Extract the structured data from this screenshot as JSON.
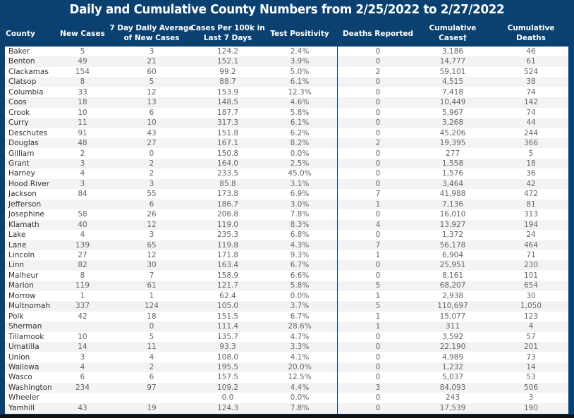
{
  "title": "Daily and Cumulative County Numbers from 2/25/2022 to 2/27/2022",
  "colors": {
    "background": "#0b4170",
    "row_alt": "#f3f3f3"
  },
  "columns": [
    "County",
    "New Cases",
    "7 Day Daily Average\nof New Cases",
    "Cases Per 100k in\nLast 7 Days",
    "Test Positivity",
    "Deaths Reported",
    "Cumulative\nCases†",
    "Cumulative\nDeaths"
  ],
  "rows": [
    [
      "Baker",
      "5",
      "3",
      "124.2",
      "2.4%",
      "0",
      "3,186",
      "46"
    ],
    [
      "Benton",
      "49",
      "21",
      "152.1",
      "3.9%",
      "0",
      "14,777",
      "61"
    ],
    [
      "Clackamas",
      "154",
      "60",
      "99.2",
      "5.0%",
      "2",
      "59,101",
      "524"
    ],
    [
      "Clatsop",
      "8",
      "5",
      "88.7",
      "6.1%",
      "0",
      "4,515",
      "38"
    ],
    [
      "Columbia",
      "33",
      "12",
      "153.9",
      "12.3%",
      "0",
      "7,418",
      "74"
    ],
    [
      "Coos",
      "18",
      "13",
      "148.5",
      "4.6%",
      "0",
      "10,449",
      "142"
    ],
    [
      "Crook",
      "10",
      "6",
      "187.7",
      "5.8%",
      "0",
      "5,967",
      "74"
    ],
    [
      "Curry",
      "11",
      "10",
      "317.3",
      "6.1%",
      "0",
      "3,268",
      "44"
    ],
    [
      "Deschutes",
      "91",
      "43",
      "151.8",
      "6.2%",
      "0",
      "45,206",
      "244"
    ],
    [
      "Douglas",
      "48",
      "27",
      "167.1",
      "8.2%",
      "2",
      "19,395",
      "366"
    ],
    [
      "Gilliam",
      "2",
      "0",
      "150.8",
      "0.0%",
      "0",
      "277",
      "5"
    ],
    [
      "Grant",
      "3",
      "2",
      "164.0",
      "2.5%",
      "0",
      "1,558",
      "18"
    ],
    [
      "Harney",
      "4",
      "2",
      "233.5",
      "45.0%",
      "0",
      "1,576",
      "36"
    ],
    [
      "Hood River",
      "3",
      "3",
      "85.8",
      "3.1%",
      "0",
      "3,464",
      "42"
    ],
    [
      "Jackson",
      "84",
      "55",
      "173.8",
      "6.9%",
      "7",
      "41,988",
      "472"
    ],
    [
      "Jefferson",
      "",
      "6",
      "186.7",
      "3.0%",
      "1",
      "7,136",
      "81"
    ],
    [
      "Josephine",
      "58",
      "26",
      "206.8",
      "7.8%",
      "0",
      "16,010",
      "313"
    ],
    [
      "Klamath",
      "40",
      "12",
      "119.0",
      "8.3%",
      "4",
      "13,927",
      "194"
    ],
    [
      "Lake",
      "4",
      "3",
      "235.3",
      "6.8%",
      "0",
      "1,372",
      "24"
    ],
    [
      "Lane",
      "139",
      "65",
      "119.8",
      "4.3%",
      "7",
      "56,178",
      "464"
    ],
    [
      "Lincoln",
      "27",
      "12",
      "171.8",
      "9.3%",
      "1",
      "6,904",
      "71"
    ],
    [
      "Linn",
      "82",
      "30",
      "163.4",
      "6.7%",
      "0",
      "25,951",
      "230"
    ],
    [
      "Malheur",
      "8",
      "7",
      "158.9",
      "6.6%",
      "0",
      "8,161",
      "101"
    ],
    [
      "Marion",
      "119",
      "61",
      "121.7",
      "5.8%",
      "5",
      "68,207",
      "654"
    ],
    [
      "Morrow",
      "1",
      "1",
      "62.4",
      "0.0%",
      "1",
      "2,938",
      "30"
    ],
    [
      "Multnomah",
      "337",
      "124",
      "105.0",
      "3.7%",
      "5",
      "110,697",
      "1,050"
    ],
    [
      "Polk",
      "42",
      "18",
      "151.5",
      "6.7%",
      "1",
      "15,077",
      "123"
    ],
    [
      "Sherman",
      "",
      "0",
      "111.4",
      "28.6%",
      "1",
      "311",
      "4"
    ],
    [
      "Tillamook",
      "10",
      "5",
      "135.7",
      "4.7%",
      "0",
      "3,592",
      "57"
    ],
    [
      "Umatilla",
      "14",
      "11",
      "93.3",
      "3.3%",
      "0",
      "22,190",
      "201"
    ],
    [
      "Union",
      "3",
      "4",
      "108.0",
      "4.1%",
      "0",
      "4,989",
      "73"
    ],
    [
      "Wallowa",
      "4",
      "2",
      "195.5",
      "20.0%",
      "0",
      "1,232",
      "14"
    ],
    [
      "Wasco",
      "6",
      "6",
      "157.5",
      "12.5%",
      "0",
      "5,037",
      "53"
    ],
    [
      "Washington",
      "234",
      "97",
      "109.2",
      "4.4%",
      "3",
      "84,093",
      "506"
    ],
    [
      "Wheeler",
      "",
      "",
      "0.0",
      "0.0%",
      "0",
      "243",
      "3"
    ],
    [
      "Yamhill",
      "43",
      "19",
      "124.3",
      "7.8%",
      "0",
      "17,539",
      "190"
    ]
  ]
}
